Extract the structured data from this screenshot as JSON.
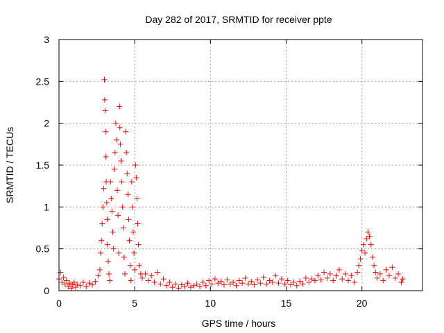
{
  "chart_data": {
    "type": "scatter",
    "title": "Day 282 of 2017, SRMTID for receiver ppte",
    "xlabel": "GPS time / hours",
    "ylabel": "SRMTID / TECUs",
    "xlim": [
      0,
      24
    ],
    "ylim": [
      0,
      3
    ],
    "xticks": [
      0,
      5,
      10,
      15,
      20
    ],
    "xtick_labels": [
      "0",
      "5",
      "10",
      "15",
      "20"
    ],
    "yticks": [
      0,
      0.5,
      1,
      1.5,
      2,
      2.5,
      3
    ],
    "ytick_labels": [
      "0",
      "0.5",
      "1",
      "1.5",
      "2",
      "2.5",
      "3"
    ],
    "grid": true,
    "marker": "+",
    "color": "#ff0000",
    "series": [
      {
        "name": "SRMTID",
        "points": [
          [
            0.0,
            0.14
          ],
          [
            0.1,
            0.22
          ],
          [
            0.2,
            0.1
          ],
          [
            0.3,
            0.16
          ],
          [
            0.4,
            0.08
          ],
          [
            0.5,
            0.12
          ],
          [
            0.6,
            0.05
          ],
          [
            0.7,
            0.09
          ],
          [
            0.8,
            0.03
          ],
          [
            0.9,
            0.07
          ],
          [
            1.0,
            0.1
          ],
          [
            1.1,
            0.04
          ],
          [
            1.2,
            0.08
          ],
          [
            1.4,
            0.06
          ],
          [
            1.6,
            0.1
          ],
          [
            1.8,
            0.05
          ],
          [
            2.0,
            0.09
          ],
          [
            2.2,
            0.07
          ],
          [
            2.4,
            0.11
          ],
          [
            2.6,
            0.18
          ],
          [
            2.7,
            0.25
          ],
          [
            2.75,
            0.45
          ],
          [
            2.8,
            0.6
          ],
          [
            2.85,
            0.8
          ],
          [
            2.9,
            1.0
          ],
          [
            2.95,
            1.22
          ],
          [
            3.0,
            2.52
          ],
          [
            3.02,
            2.28
          ],
          [
            3.05,
            2.15
          ],
          [
            3.08,
            1.9
          ],
          [
            3.1,
            1.6
          ],
          [
            3.12,
            1.3
          ],
          [
            3.15,
            1.05
          ],
          [
            3.18,
            0.85
          ],
          [
            3.2,
            0.55
          ],
          [
            3.25,
            0.35
          ],
          [
            3.3,
            0.2
          ],
          [
            3.35,
            0.12
          ],
          [
            3.4,
            1.3
          ],
          [
            3.45,
            1.1
          ],
          [
            3.5,
            0.95
          ],
          [
            3.55,
            0.7
          ],
          [
            3.6,
            0.5
          ],
          [
            3.65,
            1.45
          ],
          [
            3.7,
            1.65
          ],
          [
            3.75,
            2.0
          ],
          [
            3.8,
            1.8
          ],
          [
            3.85,
            1.2
          ],
          [
            3.9,
            0.9
          ],
          [
            3.95,
            0.45
          ],
          [
            4.0,
            2.2
          ],
          [
            4.02,
            1.95
          ],
          [
            4.05,
            1.75
          ],
          [
            4.1,
            1.55
          ],
          [
            4.15,
            1.3
          ],
          [
            4.2,
            1.0
          ],
          [
            4.25,
            0.75
          ],
          [
            4.3,
            0.4
          ],
          [
            4.35,
            0.2
          ],
          [
            4.4,
            1.9
          ],
          [
            4.45,
            1.65
          ],
          [
            4.5,
            1.4
          ],
          [
            4.55,
            1.15
          ],
          [
            4.6,
            0.85
          ],
          [
            4.65,
            0.6
          ],
          [
            4.7,
            0.3
          ],
          [
            4.75,
            0.12
          ],
          [
            4.8,
            1.3
          ],
          [
            4.85,
            1.0
          ],
          [
            4.9,
            0.7
          ],
          [
            4.95,
            0.45
          ],
          [
            5.0,
            0.25
          ],
          [
            5.05,
            1.5
          ],
          [
            5.1,
            1.35
          ],
          [
            5.15,
            1.1
          ],
          [
            5.2,
            0.8
          ],
          [
            5.25,
            0.55
          ],
          [
            5.3,
            0.3
          ],
          [
            5.4,
            0.2
          ],
          [
            5.5,
            0.15
          ],
          [
            5.7,
            0.2
          ],
          [
            5.9,
            0.12
          ],
          [
            6.1,
            0.18
          ],
          [
            6.3,
            0.1
          ],
          [
            6.5,
            0.22
          ],
          [
            6.7,
            0.08
          ],
          [
            6.9,
            0.14
          ],
          [
            7.1,
            0.06
          ],
          [
            7.3,
            0.1
          ],
          [
            7.5,
            0.04
          ],
          [
            7.7,
            0.08
          ],
          [
            7.9,
            0.03
          ],
          [
            8.1,
            0.07
          ],
          [
            8.3,
            0.05
          ],
          [
            8.5,
            0.09
          ],
          [
            8.7,
            0.04
          ],
          [
            8.9,
            0.06
          ],
          [
            9.1,
            0.08
          ],
          [
            9.3,
            0.05
          ],
          [
            9.5,
            0.1
          ],
          [
            9.7,
            0.06
          ],
          [
            9.9,
            0.12
          ],
          [
            10.1,
            0.08
          ],
          [
            10.3,
            0.14
          ],
          [
            10.5,
            0.09
          ],
          [
            10.7,
            0.11
          ],
          [
            10.9,
            0.07
          ],
          [
            11.1,
            0.13
          ],
          [
            11.3,
            0.08
          ],
          [
            11.5,
            0.1
          ],
          [
            11.7,
            0.06
          ],
          [
            11.9,
            0.12
          ],
          [
            12.1,
            0.09
          ],
          [
            12.3,
            0.15
          ],
          [
            12.5,
            0.08
          ],
          [
            12.7,
            0.11
          ],
          [
            12.9,
            0.07
          ],
          [
            13.1,
            0.13
          ],
          [
            13.3,
            0.09
          ],
          [
            13.5,
            0.16
          ],
          [
            13.7,
            0.08
          ],
          [
            13.9,
            0.12
          ],
          [
            14.1,
            0.1
          ],
          [
            14.3,
            0.18
          ],
          [
            14.5,
            0.09
          ],
          [
            14.7,
            0.14
          ],
          [
            14.9,
            0.08
          ],
          [
            15.1,
            0.12
          ],
          [
            15.3,
            0.07
          ],
          [
            15.5,
            0.1
          ],
          [
            15.7,
            0.06
          ],
          [
            15.9,
            0.11
          ],
          [
            16.1,
            0.08
          ],
          [
            16.3,
            0.15
          ],
          [
            16.5,
            0.1
          ],
          [
            16.7,
            0.14
          ],
          [
            16.9,
            0.12
          ],
          [
            17.1,
            0.18
          ],
          [
            17.3,
            0.13
          ],
          [
            17.5,
            0.22
          ],
          [
            17.7,
            0.15
          ],
          [
            17.9,
            0.2
          ],
          [
            18.1,
            0.12
          ],
          [
            18.3,
            0.18
          ],
          [
            18.5,
            0.25
          ],
          [
            18.7,
            0.14
          ],
          [
            18.9,
            0.2
          ],
          [
            19.1,
            0.12
          ],
          [
            19.3,
            0.18
          ],
          [
            19.5,
            0.1
          ],
          [
            19.7,
            0.22
          ],
          [
            19.8,
            0.3
          ],
          [
            19.9,
            0.38
          ],
          [
            20.0,
            0.48
          ],
          [
            20.1,
            0.55
          ],
          [
            20.2,
            0.45
          ],
          [
            20.3,
            0.62
          ],
          [
            20.4,
            0.7
          ],
          [
            20.5,
            0.65
          ],
          [
            20.6,
            0.55
          ],
          [
            20.7,
            0.4
          ],
          [
            20.8,
            0.3
          ],
          [
            20.9,
            0.22
          ],
          [
            21.0,
            0.15
          ],
          [
            21.2,
            0.2
          ],
          [
            21.4,
            0.12
          ],
          [
            21.6,
            0.25
          ],
          [
            21.8,
            0.18
          ],
          [
            22.0,
            0.28
          ],
          [
            22.2,
            0.15
          ],
          [
            22.4,
            0.2
          ],
          [
            22.6,
            0.1
          ],
          [
            22.7,
            0.14
          ]
        ]
      }
    ]
  }
}
